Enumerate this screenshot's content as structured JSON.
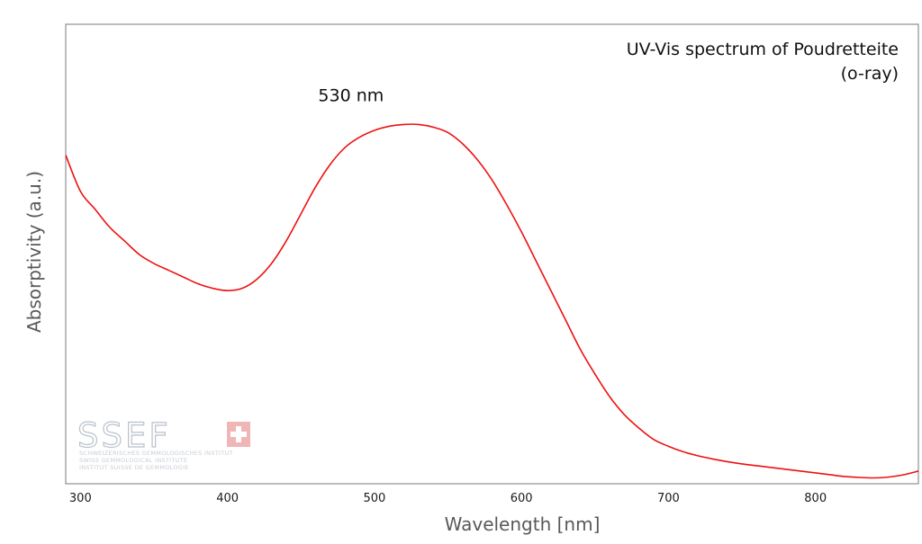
{
  "chart_data": {
    "type": "line",
    "title_lines": [
      "UV-Vis spectrum of Poudretteite",
      "(o-ray)"
    ],
    "xlabel": "Wavelength [nm]",
    "ylabel": "Absorptivity (a.u.)",
    "xlim": [
      290,
      870
    ],
    "ylim": [
      0,
      1
    ],
    "x_ticks": [
      300,
      400,
      500,
      600,
      700,
      800
    ],
    "y_ticks": [],
    "grid": false,
    "legend": "none",
    "series": [
      {
        "color": "#ee1111",
        "x": [
          290,
          300,
          310,
          320,
          330,
          340,
          350,
          360,
          370,
          380,
          390,
          400,
          410,
          420,
          430,
          440,
          450,
          460,
          470,
          480,
          490,
          500,
          510,
          520,
          530,
          540,
          550,
          560,
          570,
          580,
          590,
          600,
          610,
          620,
          630,
          640,
          650,
          660,
          670,
          680,
          690,
          700,
          710,
          720,
          730,
          740,
          750,
          760,
          770,
          780,
          790,
          800,
          810,
          820,
          830,
          840,
          850,
          860,
          870
        ],
        "y": [
          0.72,
          0.64,
          0.6,
          0.56,
          0.53,
          0.5,
          0.48,
          0.465,
          0.45,
          0.435,
          0.425,
          0.42,
          0.425,
          0.445,
          0.48,
          0.53,
          0.59,
          0.65,
          0.7,
          0.737,
          0.76,
          0.775,
          0.784,
          0.788,
          0.788,
          0.782,
          0.77,
          0.745,
          0.71,
          0.665,
          0.61,
          0.55,
          0.485,
          0.42,
          0.355,
          0.29,
          0.235,
          0.185,
          0.145,
          0.115,
          0.09,
          0.075,
          0.063,
          0.054,
          0.047,
          0.041,
          0.036,
          0.032,
          0.028,
          0.024,
          0.02,
          0.016,
          0.012,
          0.008,
          0.006,
          0.005,
          0.007,
          0.012,
          0.02
        ]
      }
    ],
    "annotations": [
      {
        "text": "530 nm",
        "x": 530,
        "y": 0.788
      }
    ]
  },
  "watermark": {
    "logo_text": "SSEF",
    "lines": [
      "SCHWEIZERISCHES GEMMOLOGISCHES INSTITUT",
      "SWISS GEMMOLOGICAL INSTITUTE",
      "INSTITUT SUISSE DE GEMMOLOGIE"
    ],
    "cross_color": "#f0b6b6"
  }
}
